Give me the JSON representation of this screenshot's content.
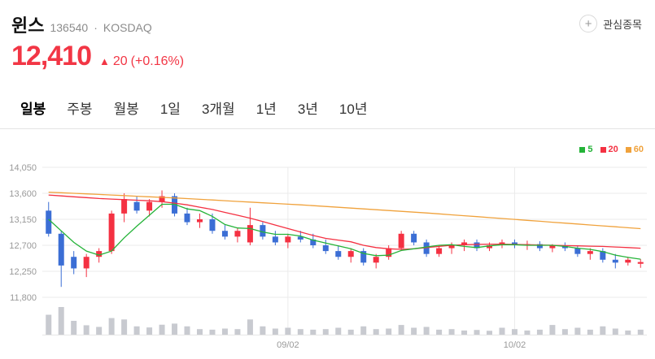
{
  "header": {
    "stock_name": "윈스",
    "stock_code": "136540",
    "separator": "·",
    "market": "KOSDAQ"
  },
  "watchlist": {
    "icon": "+",
    "label": "관심종목"
  },
  "price": {
    "current": "12,410",
    "arrow": "▲",
    "change": "20",
    "percent": "(+0.16%)",
    "color": "#f23645"
  },
  "tabs": {
    "items": [
      "일봉",
      "주봉",
      "월봉",
      "1일",
      "3개월",
      "1년",
      "3년",
      "10년"
    ],
    "selected_index": 0
  },
  "chart_data": {
    "type": "candlestick",
    "y_axis_labels": [
      "14,050",
      "13,600",
      "13,150",
      "12,700",
      "12,250",
      "11,800"
    ],
    "y_max": 14050,
    "y_min": 11800,
    "x_ticks": [
      {
        "index": 19,
        "label": "09/02"
      },
      {
        "index": 37,
        "label": "10/02"
      }
    ],
    "legend": [
      {
        "label": "5",
        "color": "#24b338"
      },
      {
        "label": "20",
        "color": "#f43142"
      },
      {
        "label": "60",
        "color": "#f0a23c"
      }
    ],
    "up_color": "#f43142",
    "down_color": "#3b6ed5",
    "volume_color": "#c8cad0",
    "grid_color": "#ebebeb",
    "axis_text_color": "#999999",
    "candles": [
      [
        13300,
        13450,
        12850,
        12900,
        0.72
      ],
      [
        12900,
        12950,
        11980,
        12350,
        1.0
      ],
      [
        12500,
        12600,
        12200,
        12300,
        0.5
      ],
      [
        12300,
        12550,
        12150,
        12500,
        0.34
      ],
      [
        12500,
        12650,
        12400,
        12600,
        0.28
      ],
      [
        12600,
        13300,
        12550,
        13250,
        0.6
      ],
      [
        13250,
        13600,
        13100,
        13500,
        0.55
      ],
      [
        13450,
        13550,
        13250,
        13300,
        0.3
      ],
      [
        13300,
        13500,
        13200,
        13450,
        0.26
      ],
      [
        13450,
        13650,
        13350,
        13550,
        0.36
      ],
      [
        13550,
        13600,
        13200,
        13250,
        0.4
      ],
      [
        13250,
        13350,
        13050,
        13100,
        0.3
      ],
      [
        13100,
        13250,
        13000,
        13150,
        0.2
      ],
      [
        13150,
        13250,
        12900,
        12950,
        0.18
      ],
      [
        12950,
        13050,
        12800,
        12850,
        0.22
      ],
      [
        12850,
        13000,
        12750,
        12950,
        0.2
      ],
      [
        12750,
        13350,
        12700,
        13050,
        0.55
      ],
      [
        13050,
        13100,
        12800,
        12850,
        0.3
      ],
      [
        12850,
        12950,
        12700,
        12750,
        0.22
      ],
      [
        12750,
        12900,
        12650,
        12850,
        0.25
      ],
      [
        12850,
        12950,
        12750,
        12800,
        0.2
      ],
      [
        12800,
        12900,
        12650,
        12700,
        0.18
      ],
      [
        12700,
        12800,
        12550,
        12600,
        0.2
      ],
      [
        12600,
        12700,
        12450,
        12500,
        0.25
      ],
      [
        12500,
        12650,
        12400,
        12600,
        0.18
      ],
      [
        12600,
        12650,
        12350,
        12400,
        0.3
      ],
      [
        12400,
        12550,
        12300,
        12500,
        0.2
      ],
      [
        12500,
        12700,
        12450,
        12650,
        0.22
      ],
      [
        12650,
        12950,
        12600,
        12900,
        0.35
      ],
      [
        12900,
        12950,
        12700,
        12750,
        0.25
      ],
      [
        12750,
        12800,
        12500,
        12550,
        0.28
      ],
      [
        12550,
        12700,
        12500,
        12650,
        0.18
      ],
      [
        12650,
        12750,
        12550,
        12700,
        0.2
      ],
      [
        12700,
        12800,
        12600,
        12750,
        0.15
      ],
      [
        12750,
        12800,
        12600,
        12650,
        0.17
      ],
      [
        12650,
        12750,
        12600,
        12700,
        0.14
      ],
      [
        12700,
        12800,
        12650,
        12750,
        0.25
      ],
      [
        12750,
        12800,
        12650,
        12700,
        0.2
      ],
      [
        12700,
        12780,
        12620,
        12720,
        0.15
      ],
      [
        12720,
        12770,
        12600,
        12650,
        0.18
      ],
      [
        12650,
        12720,
        12580,
        12700,
        0.35
      ],
      [
        12700,
        12750,
        12600,
        12650,
        0.2
      ],
      [
        12650,
        12700,
        12500,
        12550,
        0.25
      ],
      [
        12550,
        12650,
        12450,
        12600,
        0.18
      ],
      [
        12600,
        12650,
        12400,
        12450,
        0.3
      ],
      [
        12450,
        12550,
        12300,
        12400,
        0.22
      ],
      [
        12400,
        12500,
        12350,
        12450,
        0.15
      ],
      [
        12380,
        12460,
        12310,
        12410,
        0.18
      ]
    ],
    "ma5": [
      13150,
      12950,
      12750,
      12600,
      12530,
      12600,
      12830,
      13030,
      13220,
      13410,
      13410,
      13330,
      13300,
      13200,
      13060,
      13000,
      12990,
      12930,
      12890,
      12890,
      12860,
      12790,
      12740,
      12690,
      12640,
      12560,
      12520,
      12530,
      12610,
      12640,
      12670,
      12700,
      12710,
      12680,
      12660,
      12690,
      12710,
      12710,
      12700,
      12700,
      12700,
      12680,
      12650,
      12630,
      12590,
      12530,
      12490,
      12460
    ],
    "ma20": [
      13570,
      13555,
      13540,
      13525,
      13510,
      13500,
      13490,
      13480,
      13470,
      13455,
      13430,
      13400,
      13360,
      13320,
      13270,
      13220,
      13170,
      13110,
      13050,
      12990,
      12930,
      12870,
      12820,
      12790,
      12760,
      12700,
      12660,
      12640,
      12630,
      12640,
      12660,
      12680,
      12700,
      12710,
      12715,
      12720,
      12720,
      12715,
      12710,
      12705,
      12700,
      12695,
      12690,
      12685,
      12680,
      12670,
      12660,
      12650
    ],
    "ma60": [
      13620,
      13610,
      13600,
      13590,
      13580,
      13570,
      13560,
      13550,
      13540,
      13530,
      13520,
      13508,
      13496,
      13484,
      13472,
      13460,
      13448,
      13436,
      13424,
      13412,
      13400,
      13386,
      13372,
      13358,
      13344,
      13330,
      13316,
      13302,
      13288,
      13274,
      13260,
      13244,
      13228,
      13212,
      13196,
      13180,
      13164,
      13148,
      13132,
      13116,
      13100,
      13084,
      13068,
      13052,
      13036,
      13020,
      13004,
      12988
    ]
  }
}
